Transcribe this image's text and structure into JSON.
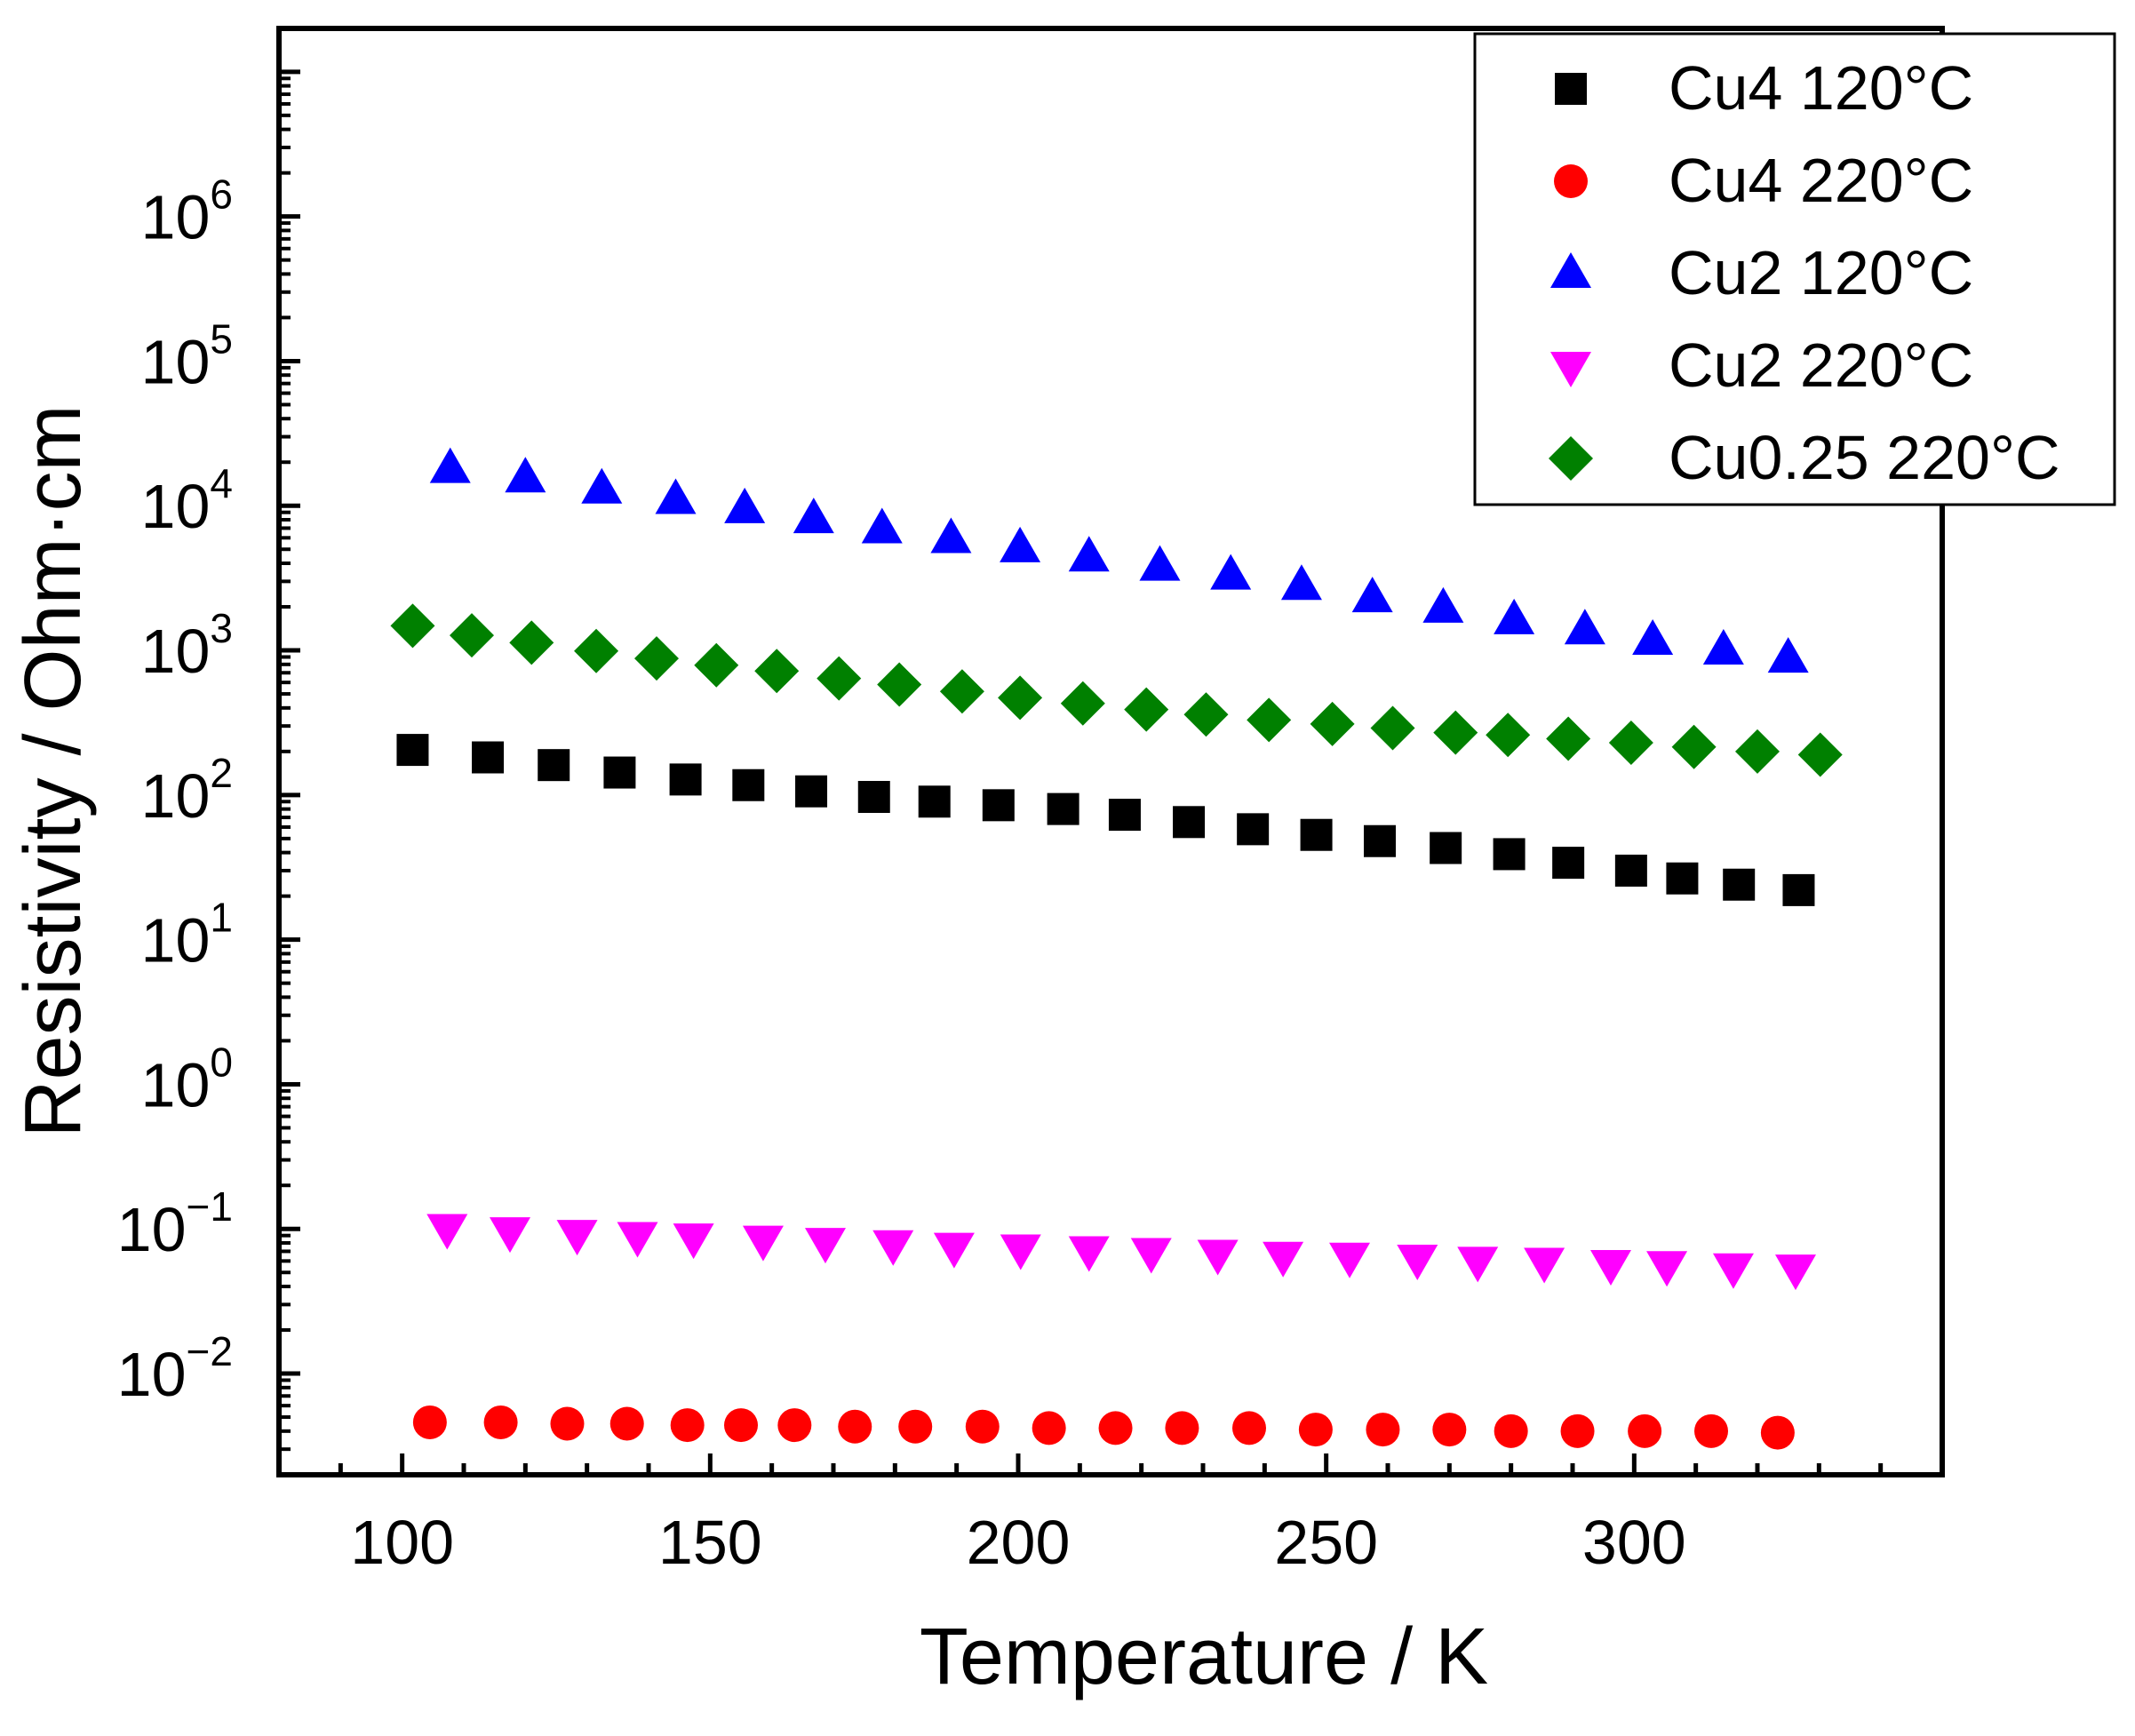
{
  "chart_data": {
    "type": "scatter",
    "title": "",
    "xlabel": "Temperature / K",
    "ylabel": "Resistivity / Ohm·cm",
    "xlim": [
      80,
      350
    ],
    "ylim_log10": [
      -2.7,
      7.3
    ],
    "yscale": "log",
    "x_ticks": [
      100,
      150,
      200,
      250,
      300
    ],
    "y_tick_exponents": [
      -2,
      -1,
      0,
      1,
      2,
      3,
      4,
      5,
      6
    ],
    "y_tick_base": "10",
    "y_tick_exponent_labels": [
      "−2",
      "−1",
      "0",
      "1",
      "2",
      "3",
      "4",
      "5",
      "6"
    ],
    "legend_position": "top-right",
    "series": [
      {
        "name": "Cu4 120°C",
        "marker": "square",
        "color": "#000000",
        "x": [
          101.7,
          113.9,
          124.6,
          135.3,
          146.0,
          156.2,
          166.4,
          176.6,
          186.4,
          196.8,
          207.3,
          217.3,
          227.7,
          238.1,
          248.4,
          258.7,
          269.4,
          279.7,
          289.3,
          299.5,
          307.8,
          317.0,
          326.7
        ],
        "y": [
          205,
          182,
          161,
          143,
          128,
          117,
          106,
          97,
          90,
          85,
          80,
          73,
          65,
          58,
          53,
          48,
          43,
          39,
          34,
          30,
          26.5,
          24,
          22
        ]
      },
      {
        "name": "Cu4 220°C",
        "marker": "circle",
        "color": "#ff0000",
        "x": [
          104.5,
          116.0,
          126.8,
          136.5,
          146.3,
          155.0,
          163.7,
          173.5,
          183.3,
          194.2,
          205.0,
          215.8,
          226.6,
          237.5,
          248.3,
          259.2,
          270.0,
          280.0,
          290.8,
          301.7,
          312.5,
          323.3
        ],
        "y": [
          0.0046,
          0.0046,
          0.0045,
          0.0045,
          0.0044,
          0.0044,
          0.0044,
          0.0043,
          0.0043,
          0.0043,
          0.0042,
          0.0042,
          0.0042,
          0.0042,
          0.0041,
          0.0041,
          0.0041,
          0.004,
          0.004,
          0.004,
          0.004,
          0.0039
        ]
      },
      {
        "name": "Cu2 120°C",
        "marker": "triangle-up",
        "color": "#0000ff",
        "x": [
          107.8,
          120.0,
          132.4,
          144.4,
          155.6,
          166.8,
          177.9,
          189.1,
          200.3,
          211.5,
          223.0,
          234.5,
          246.0,
          257.5,
          269.0,
          280.5,
          292.0,
          303.0,
          314.5,
          325.0
        ],
        "y": [
          18000,
          15500,
          13000,
          11000,
          9500,
          8100,
          6900,
          5900,
          5100,
          4400,
          3800,
          3300,
          2800,
          2300,
          1950,
          1620,
          1380,
          1170,
          1000,
          880
        ]
      },
      {
        "name": "Cu2 220°C",
        "marker": "triangle-down",
        "color": "#ff00ff",
        "x": [
          107.3,
          117.5,
          128.4,
          138.2,
          147.3,
          158.6,
          168.7,
          179.7,
          189.6,
          200.4,
          211.5,
          221.6,
          232.4,
          243.0,
          253.8,
          264.8,
          274.6,
          285.4,
          296.2,
          305.3,
          316.1,
          326.2
        ],
        "y": [
          0.101,
          0.096,
          0.092,
          0.089,
          0.087,
          0.084,
          0.081,
          0.078,
          0.075,
          0.073,
          0.071,
          0.069,
          0.067,
          0.065,
          0.064,
          0.062,
          0.06,
          0.059,
          0.057,
          0.056,
          0.054,
          0.053
        ]
      },
      {
        "name": "Cu0.25 220°C",
        "marker": "diamond",
        "color": "#008000",
        "x": [
          101.7,
          111.3,
          121.0,
          131.5,
          141.3,
          151.0,
          160.8,
          170.9,
          180.7,
          190.9,
          200.3,
          210.5,
          220.8,
          230.5,
          240.7,
          251.0,
          260.8,
          271.0,
          279.5,
          289.3,
          299.5,
          309.7,
          320.0,
          330.2
        ],
        "y": [
          1480,
          1270,
          1130,
          990,
          880,
          790,
          720,
          640,
          580,
          520,
          470,
          430,
          390,
          360,
          330,
          310,
          290,
          270,
          260,
          245,
          230,
          215,
          200,
          190
        ]
      }
    ]
  }
}
